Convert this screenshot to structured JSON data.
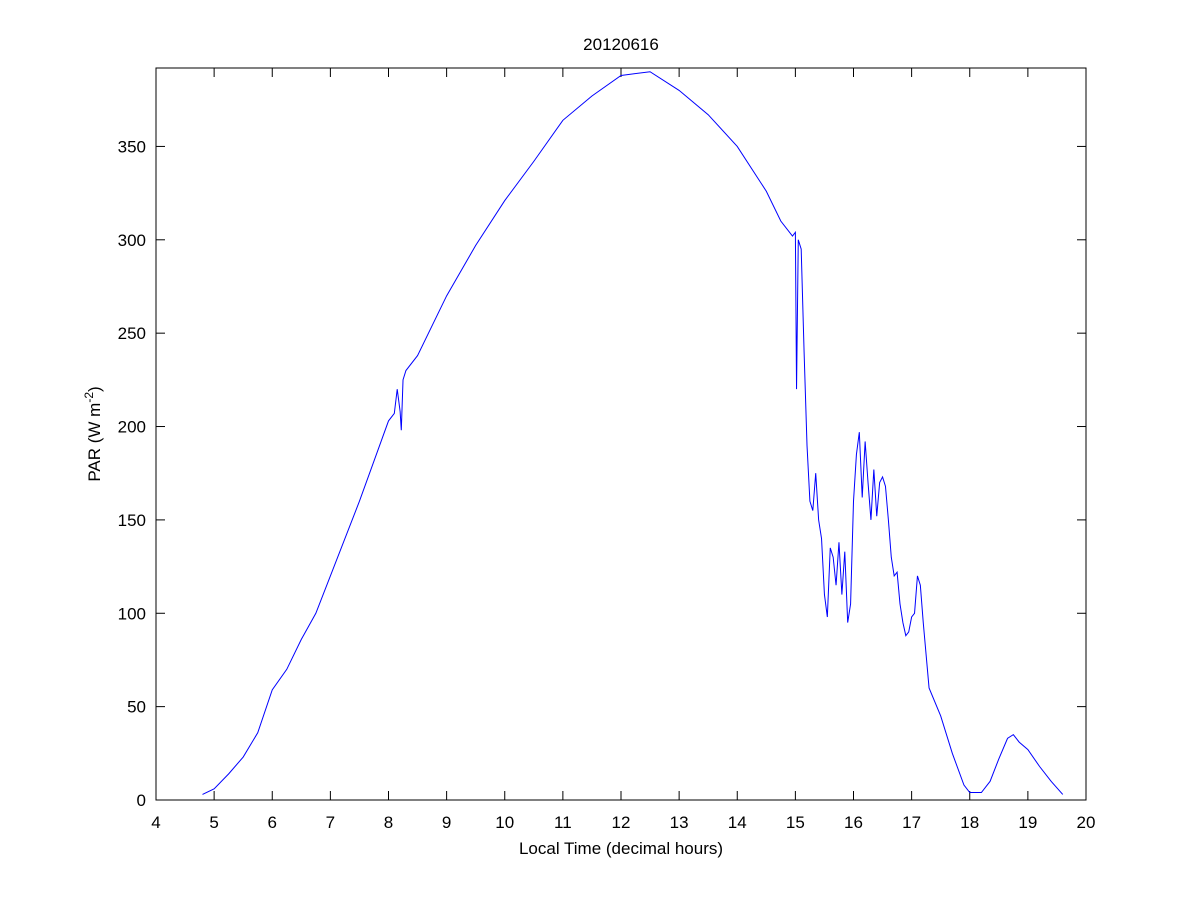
{
  "chart_data": {
    "type": "line",
    "title": "20120616",
    "x_label": "Local Time (decimal hours)",
    "y_label_parts": [
      "PAR (W m",
      "-2",
      ")"
    ],
    "xlim": [
      4,
      20
    ],
    "xticks": [
      4,
      5,
      6,
      7,
      8,
      9,
      10,
      11,
      12,
      13,
      14,
      15,
      16,
      17,
      18,
      19,
      20
    ],
    "ylim": [
      0,
      392
    ],
    "yticks": [
      0,
      50,
      100,
      150,
      200,
      250,
      300,
      350
    ],
    "grid": false,
    "series": [
      {
        "color": "#0000ff",
        "x": [
          4.8,
          5.0,
          5.25,
          5.5,
          5.75,
          6.0,
          6.25,
          6.5,
          6.75,
          7.0,
          7.5,
          8.0,
          8.1,
          8.15,
          8.2,
          8.22,
          8.25,
          8.3,
          8.5,
          9.0,
          9.5,
          10.0,
          10.5,
          11.0,
          11.5,
          12.0,
          12.5,
          13.0,
          13.5,
          14.0,
          14.5,
          14.75,
          14.95,
          15.0,
          15.02,
          15.05,
          15.1,
          15.15,
          15.2,
          15.25,
          15.3,
          15.35,
          15.4,
          15.45,
          15.5,
          15.55,
          15.6,
          15.65,
          15.7,
          15.75,
          15.8,
          15.85,
          15.9,
          15.95,
          16.0,
          16.05,
          16.1,
          16.15,
          16.2,
          16.25,
          16.3,
          16.35,
          16.4,
          16.45,
          16.5,
          16.55,
          16.6,
          16.65,
          16.7,
          16.75,
          16.8,
          16.85,
          16.9,
          16.95,
          17.0,
          17.05,
          17.1,
          17.15,
          17.2,
          17.3,
          17.5,
          17.7,
          17.9,
          18.0,
          18.2,
          18.35,
          18.5,
          18.65,
          18.75,
          18.85,
          19.0,
          19.2,
          19.4,
          19.6
        ],
        "values": [
          3,
          6,
          14,
          23,
          36,
          59,
          70,
          86,
          100,
          120,
          160,
          203,
          207,
          220,
          208,
          198,
          225,
          230,
          238,
          270,
          297,
          321,
          342,
          364,
          377,
          388,
          390,
          380,
          367,
          350,
          326,
          310,
          302,
          304,
          220,
          300,
          295,
          240,
          190,
          160,
          155,
          175,
          150,
          140,
          110,
          98,
          135,
          130,
          115,
          138,
          110,
          133,
          95,
          105,
          160,
          185,
          197,
          162,
          192,
          170,
          150,
          177,
          152,
          170,
          173,
          168,
          150,
          130,
          120,
          122,
          105,
          95,
          88,
          90,
          98,
          100,
          120,
          115,
          95,
          60,
          45,
          25,
          8,
          4,
          4,
          10,
          22,
          33,
          35,
          31,
          27,
          18,
          10,
          3
        ]
      }
    ]
  }
}
